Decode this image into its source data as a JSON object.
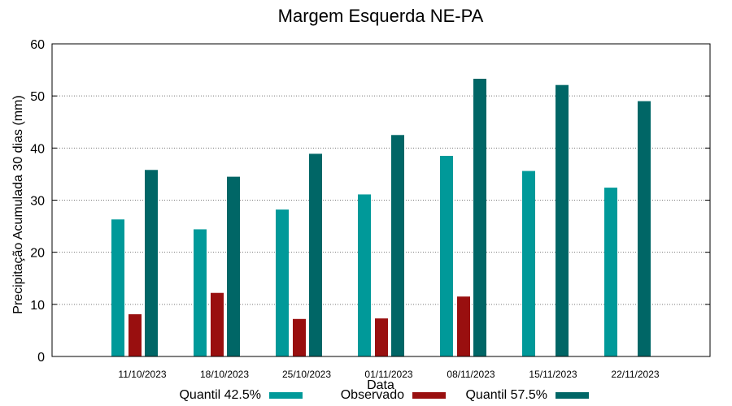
{
  "chart_data": {
    "type": "bar",
    "title": "Margem Esquerda NE-PA",
    "xlabel": "Data",
    "ylabel": "Precipitação Acumulada 30 dias (mm)",
    "ylim": [
      0,
      60
    ],
    "yticks": [
      0,
      10,
      20,
      30,
      40,
      50,
      60
    ],
    "grid": true,
    "legend_position": "bottom",
    "categories": [
      "11/10/2023",
      "18/10/2023",
      "25/10/2023",
      "01/11/2023",
      "08/11/2023",
      "15/11/2023",
      "22/11/2023"
    ],
    "series": [
      {
        "name": "Quantil 42.5%",
        "color": "#009999",
        "values": [
          26.3,
          24.4,
          28.2,
          31.1,
          38.5,
          35.6,
          32.4
        ]
      },
      {
        "name": "Observado",
        "color": "#990f0f",
        "values": [
          8.1,
          12.2,
          7.2,
          7.3,
          11.5,
          null,
          null
        ]
      },
      {
        "name": "Quantil 57.5%",
        "color": "#006666",
        "values": [
          35.8,
          34.5,
          38.9,
          42.5,
          53.3,
          52.1,
          49.0
        ]
      }
    ]
  }
}
